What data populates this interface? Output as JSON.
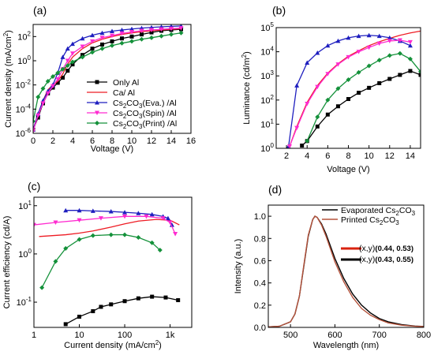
{
  "chart_data": [
    {
      "panel": "(a)",
      "type": "line",
      "xlabel": "Voltage (V)",
      "ylabel": "Current density (mA/cm²)",
      "ylabel_parts": [
        "Current density (mA/cm",
        "2",
        ")"
      ],
      "xscale": "linear",
      "yscale": "log",
      "xlim": [
        0,
        16
      ],
      "ylim": [
        1e-06,
        1000
      ],
      "xticks": [
        0,
        2,
        4,
        6,
        8,
        10,
        12,
        14,
        16
      ],
      "xtick_labels": [
        "0",
        "2",
        "4",
        "6",
        "8",
        "10",
        "12",
        "14",
        "16"
      ],
      "yticks": [
        1e-06,
        0.0001,
        0.01,
        1,
        100
      ],
      "ytick_labels": [
        [
          "10",
          "-6"
        ],
        [
          "10",
          "-4"
        ],
        [
          "10",
          "-2"
        ],
        [
          "10",
          "0"
        ],
        [
          "10",
          "2"
        ]
      ],
      "legend_position": "center-right",
      "series": [
        {
          "name": "Only Al",
          "name_parts": [
            [
              "Only Al",
              ""
            ]
          ],
          "color": "#000000",
          "marker": "square",
          "x": [
            0,
            0.5,
            1,
            1.5,
            2,
            2.5,
            3,
            3.5,
            4,
            5,
            6,
            7,
            8,
            9,
            10,
            11,
            12,
            13,
            14,
            15
          ],
          "y": [
            2e-06,
            2e-05,
            0.0003,
            0.002,
            0.006,
            0.015,
            0.04,
            0.15,
            0.5,
            3,
            10,
            22,
            40,
            70,
            100,
            150,
            220,
            300,
            350,
            400
          ]
        },
        {
          "name": "Ca/ Al",
          "name_parts": [
            [
              "Ca/ Al",
              ""
            ]
          ],
          "color": "#ee1c24",
          "marker": "none",
          "x": [
            0,
            0.5,
            1,
            1.5,
            2,
            2.5,
            3,
            3.5,
            4,
            5,
            6,
            7,
            8,
            9,
            10,
            11,
            12,
            13,
            14,
            15
          ],
          "y": [
            2e-06,
            4e-05,
            0.0005,
            0.004,
            0.01,
            0.02,
            0.08,
            0.5,
            2,
            10,
            30,
            60,
            100,
            150,
            200,
            250,
            300,
            350,
            400,
            450
          ]
        },
        {
          "name": "Cs2CO3(Eva.) /Al",
          "name_parts": [
            [
              "Cs",
              ""
            ],
            [
              "2",
              "sub"
            ],
            [
              "CO",
              ""
            ],
            [
              "3",
              "sub"
            ],
            [
              "(Eva.) /Al",
              ""
            ]
          ],
          "color": "#1f1fbf",
          "marker": "triangle",
          "x": [
            0,
            0.5,
            1,
            1.5,
            2,
            2.5,
            3,
            3.5,
            4,
            5,
            6,
            7,
            8,
            9,
            10,
            11,
            12,
            13,
            14,
            15
          ],
          "y": [
            2e-06,
            4e-05,
            0.0005,
            0.003,
            0.01,
            0.1,
            2,
            10,
            25,
            70,
            130,
            200,
            280,
            350,
            420,
            500,
            570,
            640,
            700,
            750
          ]
        },
        {
          "name": "Cs2CO3(Spin) /Al",
          "name_parts": [
            [
              "Cs",
              ""
            ],
            [
              "2",
              "sub"
            ],
            [
              "CO",
              ""
            ],
            [
              "3",
              "sub"
            ],
            [
              "(Spin) /Al",
              ""
            ]
          ],
          "color": "#ff2bd0",
          "marker": "triangle-down",
          "x": [
            0,
            0.5,
            1,
            1.5,
            2,
            2.5,
            3,
            3.5,
            4,
            5,
            6,
            7,
            8,
            9,
            10,
            11,
            12,
            13,
            14,
            15
          ],
          "y": [
            1.5e-06,
            3e-05,
            0.0003,
            0.002,
            0.008,
            0.03,
            0.2,
            1,
            4,
            15,
            40,
            80,
            120,
            180,
            240,
            300,
            350,
            400,
            450,
            500
          ]
        },
        {
          "name": "Cs2CO3(Print) /Al",
          "name_parts": [
            [
              "Cs",
              ""
            ],
            [
              "2",
              "sub"
            ],
            [
              "CO",
              ""
            ],
            [
              "3",
              "sub"
            ],
            [
              "(Print) /Al",
              ""
            ]
          ],
          "color": "#14913a",
          "marker": "diamond",
          "x": [
            0,
            0.5,
            1,
            1.5,
            2,
            2.5,
            3,
            3.5,
            4,
            5,
            6,
            7,
            8,
            9,
            10,
            11,
            12,
            13,
            14,
            15
          ],
          "y": [
            1e-05,
            0.001,
            0.005,
            0.02,
            0.05,
            0.1,
            0.2,
            0.4,
            0.8,
            2,
            5,
            10,
            18,
            28,
            40,
            60,
            80,
            110,
            150,
            200
          ]
        }
      ]
    },
    {
      "panel": "(b)",
      "type": "line",
      "xlabel": "Voltage (V)",
      "ylabel": "Luminance (cd/m²)",
      "ylabel_parts": [
        "Luminance (cd/m",
        "2",
        ")"
      ],
      "xscale": "linear",
      "yscale": "log",
      "xlim": [
        1,
        15
      ],
      "ylim": [
        1,
        100000
      ],
      "xticks": [
        2,
        4,
        6,
        8,
        10,
        12,
        14
      ],
      "xtick_labels": [
        "2",
        "4",
        "6",
        "8",
        "10",
        "12",
        "14"
      ],
      "yticks": [
        1,
        10,
        100,
        1000,
        10000,
        100000
      ],
      "ytick_labels": [
        [
          "10",
          "0"
        ],
        [
          "10",
          "1"
        ],
        [
          "10",
          "2"
        ],
        [
          "10",
          "3"
        ],
        [
          "10",
          "4"
        ],
        [
          "10",
          "5"
        ]
      ],
      "series": [
        {
          "name": "Only Al",
          "color": "#000000",
          "marker": "square",
          "x": [
            3.5,
            4,
            5,
            6,
            7,
            8,
            9,
            10,
            11,
            12,
            13,
            14,
            15
          ],
          "y": [
            1.3,
            2,
            8,
            25,
            55,
            110,
            200,
            320,
            500,
            750,
            1100,
            1600,
            1100
          ]
        },
        {
          "name": "Ca/ Al",
          "color": "#ee1c24",
          "marker": "none",
          "x": [
            2.3,
            3,
            4,
            5,
            6,
            7,
            8,
            9,
            10,
            11,
            12,
            13,
            14,
            15
          ],
          "y": [
            1.2,
            8,
            80,
            400,
            1300,
            3200,
            6500,
            11000,
            18000,
            26000,
            36000,
            48000,
            60000,
            72000
          ]
        },
        {
          "name": "Cs2CO3(Eva.) /Al",
          "color": "#1f1fbf",
          "marker": "triangle",
          "x": [
            2.2,
            3,
            4,
            5,
            6,
            7,
            8,
            9,
            10,
            11,
            12,
            13,
            14
          ],
          "y": [
            1.2,
            400,
            3500,
            9000,
            18000,
            28000,
            38000,
            45000,
            48000,
            45000,
            38000,
            28000,
            18000
          ]
        },
        {
          "name": "Cs2CO3(Spin) /Al",
          "color": "#ff2bd0",
          "marker": "triangle-down",
          "x": [
            2.3,
            3,
            4,
            5,
            6,
            7,
            8,
            9,
            10,
            11,
            12,
            13,
            14
          ],
          "y": [
            1.2,
            7,
            70,
            350,
            1200,
            3000,
            6000,
            10000,
            15000,
            22000,
            28000,
            30000,
            25000
          ]
        },
        {
          "name": "Cs2CO3(Print) /Al",
          "color": "#14913a",
          "marker": "diamond",
          "x": [
            4,
            5,
            6,
            7,
            8,
            9,
            10,
            11,
            12,
            13,
            14,
            15
          ],
          "y": [
            2,
            20,
            100,
            300,
            700,
            1400,
            2600,
            4500,
            7000,
            8500,
            5000,
            1500
          ]
        }
      ]
    },
    {
      "panel": "(c)",
      "type": "line",
      "xlabel": "Current density (mA/cm²)",
      "xlabel_parts": [
        "Current density (mA/cm",
        "2",
        ")"
      ],
      "ylabel": "Current efficiency (cd/A)",
      "xscale": "log",
      "yscale": "log",
      "xlim": [
        1,
        3000
      ],
      "ylim": [
        0.03,
        15
      ],
      "xticks": [
        1,
        10,
        100,
        1000
      ],
      "xtick_labels": [
        "1",
        "10",
        "100",
        "1k"
      ],
      "yticks": [
        0.1,
        1,
        10
      ],
      "ytick_labels": [
        [
          "10",
          "-1"
        ],
        [
          "10",
          "0"
        ],
        [
          "10",
          "1"
        ]
      ],
      "series": [
        {
          "name": "Only Al",
          "color": "#000000",
          "marker": "square",
          "x": [
            5,
            10,
            20,
            30,
            50,
            100,
            200,
            400,
            800,
            1500
          ],
          "y": [
            0.035,
            0.05,
            0.065,
            0.08,
            0.09,
            0.105,
            0.12,
            0.13,
            0.125,
            0.11
          ]
        },
        {
          "name": "Ca/ Al",
          "color": "#ee1c24",
          "marker": "none",
          "x": [
            1.3,
            5,
            10,
            20,
            50,
            100,
            200,
            500,
            1000,
            1600
          ],
          "y": [
            2.3,
            2.5,
            2.7,
            3,
            3.6,
            4.2,
            4.8,
            5.2,
            5,
            4
          ]
        },
        {
          "name": "Cs2CO3(Eva.) /Al",
          "color": "#1f1fbf",
          "marker": "triangle",
          "x": [
            5,
            10,
            20,
            50,
            100,
            200,
            400,
            700,
            900,
            1100
          ],
          "y": [
            8,
            8,
            7.8,
            7.6,
            7.3,
            7,
            6.6,
            6,
            5.5,
            4
          ]
        },
        {
          "name": "Cs2CO3(Spin) /Al",
          "color": "#ff2bd0",
          "marker": "triangle-down",
          "x": [
            1,
            3,
            10,
            30,
            100,
            300,
            700,
            1000,
            1300
          ],
          "y": [
            4,
            4.5,
            5,
            5.5,
            6,
            6,
            5.5,
            4.5,
            2.6
          ]
        },
        {
          "name": "Cs2CO3(Print) /Al",
          "color": "#14913a",
          "marker": "diamond",
          "x": [
            1.5,
            3,
            5,
            10,
            20,
            50,
            100,
            200,
            400,
            600
          ],
          "y": [
            0.2,
            0.7,
            1.3,
            2,
            2.4,
            2.5,
            2.5,
            2.2,
            1.7,
            1.2
          ]
        }
      ]
    },
    {
      "panel": "(d)",
      "type": "line",
      "xlabel": "Wavelength (nm)",
      "ylabel": "Intensity (a.u.)",
      "xscale": "linear",
      "yscale": "linear",
      "xlim": [
        450,
        800
      ],
      "ylim": [
        0,
        1.1
      ],
      "xticks": [
        500,
        600,
        700,
        800
      ],
      "xtick_labels": [
        "500",
        "600",
        "700",
        "800"
      ],
      "yticks": [
        0,
        0.2,
        0.4,
        0.6,
        0.8,
        1.0
      ],
      "ytick_labels": [
        [
          "0.0",
          ""
        ],
        [
          "0.2",
          ""
        ],
        [
          "0.4",
          ""
        ],
        [
          "0.6",
          ""
        ],
        [
          "0.8",
          ""
        ],
        [
          "1.0",
          ""
        ]
      ],
      "legend_position": "top-right",
      "series": [
        {
          "name": "Evaporated Cs2CO3",
          "name_parts": [
            [
              "Evaporated Cs",
              ""
            ],
            [
              "2",
              "sub"
            ],
            [
              "CO",
              ""
            ],
            [
              "3",
              "sub"
            ]
          ],
          "color": "#000000",
          "marker": "none",
          "x": [
            450,
            475,
            500,
            510,
            520,
            530,
            540,
            550,
            555,
            560,
            570,
            580,
            600,
            620,
            640,
            660,
            680,
            700,
            720,
            750,
            780,
            800
          ],
          "y": [
            0.005,
            0.01,
            0.05,
            0.12,
            0.28,
            0.55,
            0.82,
            0.97,
            1.0,
            0.99,
            0.93,
            0.84,
            0.62,
            0.44,
            0.3,
            0.2,
            0.13,
            0.08,
            0.05,
            0.025,
            0.012,
            0.008
          ]
        },
        {
          "name": "Printed Cs2CO3",
          "name_parts": [
            [
              "Printed Cs",
              ""
            ],
            [
              "2",
              "sub"
            ],
            [
              "CO",
              ""
            ],
            [
              "3",
              "sub"
            ]
          ],
          "color": "#b5533c",
          "marker": "none",
          "x": [
            450,
            475,
            500,
            510,
            520,
            530,
            540,
            550,
            555,
            560,
            570,
            580,
            600,
            620,
            640,
            660,
            680,
            700,
            720,
            750,
            780,
            800
          ],
          "y": [
            0.005,
            0.01,
            0.05,
            0.12,
            0.28,
            0.56,
            0.83,
            0.97,
            1.0,
            0.99,
            0.92,
            0.82,
            0.59,
            0.41,
            0.27,
            0.17,
            0.11,
            0.07,
            0.04,
            0.02,
            0.01,
            0.007
          ]
        }
      ],
      "annotations": [
        {
          "label_prefix": "(x,y)",
          "value": "(0.44, 0.53)",
          "color": "#d9230f"
        },
        {
          "label_prefix": "(x,y)",
          "value": "(0.43, 0.55)",
          "color": "#000000"
        }
      ]
    }
  ]
}
